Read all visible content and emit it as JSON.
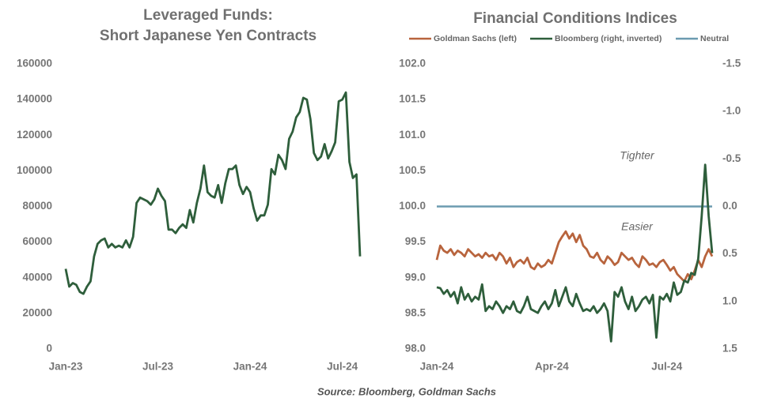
{
  "chart_data": [
    {
      "type": "line",
      "title": [
        "Leveraged Funds:",
        "Short Japanese Yen Contracts"
      ],
      "categories": [
        "Jan-23",
        null,
        null,
        null,
        null,
        null,
        null,
        null,
        null,
        null,
        null,
        null,
        null,
        null,
        null,
        null,
        null,
        null,
        null,
        null,
        null,
        null,
        null,
        null,
        null,
        null,
        "Jul-23",
        null,
        null,
        null,
        null,
        null,
        null,
        null,
        null,
        null,
        null,
        null,
        null,
        null,
        null,
        null,
        null,
        null,
        null,
        null,
        null,
        null,
        null,
        null,
        null,
        null,
        "Jan-24",
        null,
        null,
        null,
        null,
        null,
        null,
        null,
        null,
        null,
        null,
        null,
        null,
        null,
        null,
        null,
        null,
        null,
        null,
        null,
        null,
        null,
        null,
        null,
        null,
        null,
        "Jul-24",
        null,
        null,
        null,
        null,
        null
      ],
      "series": [
        {
          "name": "Short Japanese Yen Contracts",
          "color": "#2e5e3b",
          "values": [
            45000,
            35000,
            37000,
            36000,
            32000,
            31000,
            35000,
            38000,
            52000,
            59000,
            61000,
            62000,
            57000,
            59000,
            57000,
            58000,
            57000,
            61000,
            57000,
            63000,
            82000,
            85000,
            84000,
            83000,
            81000,
            84000,
            90000,
            86000,
            83000,
            67000,
            67000,
            65000,
            68000,
            70000,
            68000,
            78000,
            71000,
            82000,
            90000,
            103000,
            88000,
            86000,
            85000,
            92000,
            82000,
            93000,
            101000,
            101000,
            103000,
            92000,
            87000,
            91000,
            88000,
            79000,
            72000,
            75000,
            75000,
            81000,
            101000,
            98000,
            109000,
            106000,
            101000,
            118000,
            122000,
            130000,
            133000,
            141000,
            140000,
            129000,
            110000,
            106000,
            108000,
            115000,
            107000,
            111000,
            116000,
            139000,
            140000,
            144000,
            105000,
            96000,
            98000,
            52000
          ]
        }
      ],
      "ylim": [
        0,
        160000
      ],
      "yticks": [
        0,
        20000,
        40000,
        60000,
        80000,
        100000,
        120000,
        140000,
        160000
      ]
    },
    {
      "type": "line",
      "title": [
        "Financial Conditions Indices"
      ],
      "categories": [
        "Jan-24",
        null,
        null,
        null,
        null,
        null,
        null,
        null,
        null,
        null,
        null,
        null,
        null,
        null,
        null,
        null,
        null,
        null,
        null,
        null,
        null,
        null,
        null,
        null,
        null,
        null,
        null,
        null,
        null,
        null,
        null,
        null,
        null,
        "Apr-24",
        null,
        null,
        null,
        null,
        null,
        null,
        null,
        null,
        null,
        null,
        null,
        null,
        null,
        null,
        null,
        null,
        null,
        null,
        null,
        null,
        null,
        null,
        null,
        null,
        null,
        null,
        null,
        null,
        null,
        null,
        null,
        null,
        "Jul-24",
        null,
        null,
        null,
        null,
        null,
        null,
        null,
        null,
        null,
        null,
        null,
        null,
        null
      ],
      "series": [
        {
          "name": "Goldman Sachs (left)",
          "color": "#b8643d",
          "values": [
            99.25,
            99.45,
            99.38,
            99.35,
            99.4,
            99.32,
            99.38,
            99.35,
            99.3,
            99.4,
            99.35,
            99.3,
            99.33,
            99.28,
            99.35,
            99.3,
            99.32,
            99.25,
            99.35,
            99.3,
            99.2,
            99.28,
            99.15,
            99.22,
            99.25,
            99.2,
            99.28,
            99.15,
            99.12,
            99.2,
            99.15,
            99.18,
            99.25,
            99.2,
            99.35,
            99.5,
            99.58,
            99.65,
            99.55,
            99.62,
            99.5,
            99.6,
            99.45,
            99.4,
            99.3,
            99.28,
            99.35,
            99.25,
            99.2,
            99.3,
            99.25,
            99.18,
            99.22,
            99.35,
            99.3,
            99.25,
            99.28,
            99.2,
            99.15,
            99.3,
            99.25,
            99.18,
            99.2,
            99.15,
            99.22,
            99.25,
            99.18,
            99.1,
            99.15,
            99.05,
            99.0,
            98.95,
            99.05,
            98.98,
            99.1,
            99.25,
            99.15,
            99.3,
            99.4,
            99.3
          ]
        },
        {
          "name": "Bloomberg (right, inverted)",
          "color": "#2e5e3b",
          "axis": "y2",
          "values": [
            0.85,
            0.86,
            0.92,
            0.88,
            0.95,
            0.9,
            1.02,
            0.85,
            0.98,
            0.92,
            1.0,
            0.95,
            0.98,
            0.82,
            1.1,
            1.05,
            1.08,
            1.0,
            1.05,
            1.12,
            1.05,
            1.08,
            1.0,
            1.1,
            1.12,
            1.05,
            0.95,
            1.08,
            1.1,
            1.12,
            1.05,
            1.0,
            1.08,
            1.02,
            0.88,
            1.05,
            0.95,
            0.85,
            1.0,
            1.05,
            0.92,
            1.02,
            1.1,
            1.08,
            1.1,
            1.05,
            1.12,
            1.08,
            1.02,
            1.1,
            1.42,
            0.9,
            0.95,
            0.85,
            1.0,
            1.08,
            0.95,
            1.1,
            1.05,
            0.98,
            0.95,
            1.02,
            0.93,
            1.38,
            0.95,
            0.98,
            0.92,
            1.0,
            0.8,
            0.93,
            0.9,
            0.78,
            0.8,
            0.7,
            0.72,
            0.55,
            0.1,
            -0.44,
            0.1,
            0.49
          ]
        }
      ],
      "reference_line": {
        "name": "Neutral",
        "color": "#6b9bb0",
        "value": 100
      },
      "ylim": [
        98,
        102
      ],
      "yticks": [
        {
          "value": 98,
          "label": "98.0"
        },
        {
          "value": 98.5,
          "label": "98.5"
        },
        {
          "value": 99,
          "label": "99.0"
        },
        {
          "value": 99.5,
          "label": "99.5"
        },
        {
          "value": 100,
          "label": "100.0"
        },
        {
          "value": 100.5,
          "label": "100.5"
        },
        {
          "value": 101,
          "label": "101.0"
        },
        {
          "value": 101.5,
          "label": "101.5"
        },
        {
          "value": 102,
          "label": "102.0"
        }
      ],
      "y2lim": [
        -1.5,
        1.5
      ],
      "y2_inverted": true,
      "y2ticks": [
        -1.5,
        {
          "value": -1,
          "label": "-1.0"
        },
        -0.5,
        {
          "value": 0,
          "label": "0.0"
        },
        0.5,
        {
          "value": 1,
          "label": "1.0"
        },
        1.5
      ],
      "annotations": [
        "Tighter",
        "Easier"
      ]
    }
  ],
  "source": "Source: Bloomberg, Goldman Sachs"
}
